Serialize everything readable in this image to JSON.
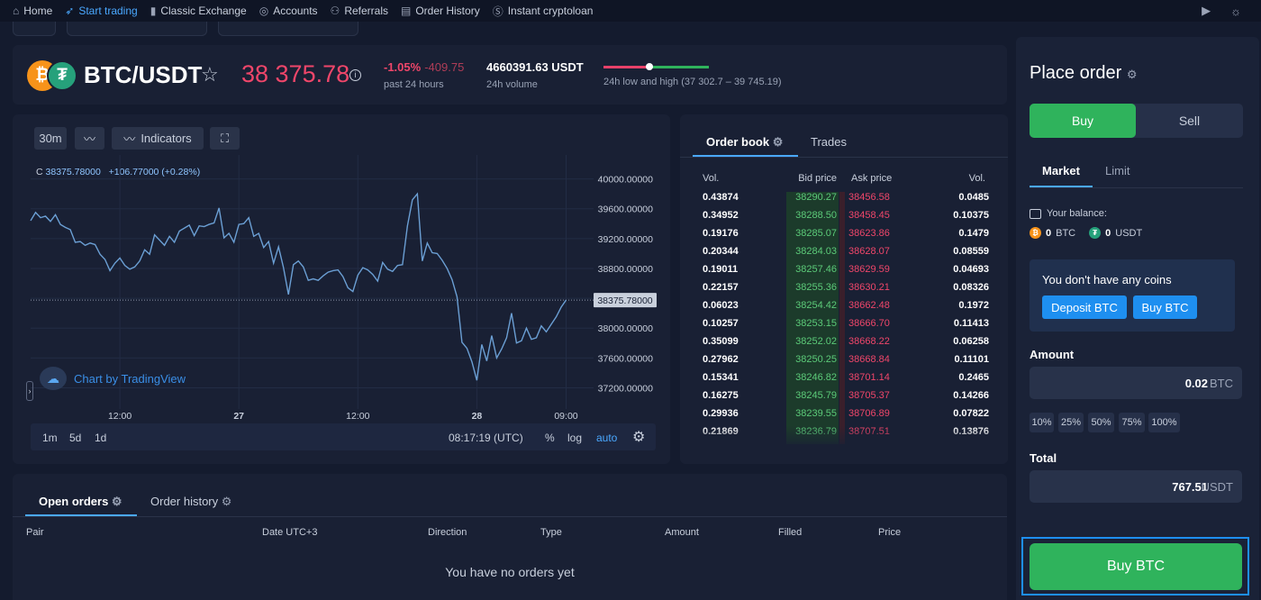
{
  "nav": {
    "items": [
      {
        "label": "Home",
        "icon": "home-icon"
      },
      {
        "label": "Start trading",
        "icon": "rocket-icon",
        "active": true
      },
      {
        "label": "Classic Exchange",
        "icon": "bar-chart-icon"
      },
      {
        "label": "Accounts",
        "icon": "coins-icon"
      },
      {
        "label": "Referrals",
        "icon": "users-icon"
      },
      {
        "label": "Order History",
        "icon": "document-icon"
      },
      {
        "label": "Instant cryptoloan",
        "icon": "money-bag-icon"
      }
    ],
    "right_icons": [
      "apple-icon",
      "google-play-icon",
      "sun-icon"
    ]
  },
  "ticker": {
    "pair": "BTC/USDT",
    "price": "38 375.78",
    "change_pct": "-1.05%",
    "change_abs": "-409.75",
    "change_label": "past 24 hours",
    "volume": "4660391.63 USDT",
    "volume_label": "24h volume",
    "range_label": "24h low and high (37 302.7 – 39 745.19)",
    "range_position": 0.44
  },
  "chart": {
    "interval": "30m",
    "indicators_label": "Indicators",
    "legend_prefix": "C",
    "legend_close": "38375.78000",
    "legend_change": "+106.77000 (+0.28%)",
    "price_tag": "38375.78000",
    "watermark": "Chart by TradingView",
    "ranges": [
      "1m",
      "5d",
      "1d"
    ],
    "time": "08:17:19 (UTC)",
    "pct_label": "%",
    "log_label": "log",
    "auto_label": "auto"
  },
  "chart_data": {
    "type": "line",
    "title": "",
    "xlabel": "",
    "ylabel": "",
    "ylim": [
      37000,
      40200
    ],
    "y_ticks": [
      40000,
      39600,
      39200,
      38800,
      38400,
      38000,
      37600,
      37200
    ],
    "y_tick_labels": [
      "40000.00000",
      "39600.00000",
      "39200.00000",
      "38800.00000",
      "38400.00000",
      "38000.00000",
      "37600.00000",
      "37200.00000"
    ],
    "x_tick_labels": [
      {
        "label": "12:00",
        "t": 18,
        "bold": false
      },
      {
        "label": "27",
        "t": 42,
        "bold": true
      },
      {
        "label": "12:00",
        "t": 66,
        "bold": false
      },
      {
        "label": "28",
        "t": 90,
        "bold": true
      },
      {
        "label": "09:00",
        "t": 108,
        "bold": false
      }
    ],
    "x_max": 109,
    "series": [
      {
        "values": [
          39440,
          39550,
          39480,
          39500,
          39430,
          39520,
          39390,
          39350,
          39320,
          39150,
          39160,
          39110,
          39140,
          39120,
          38990,
          38920,
          38770,
          38870,
          38940,
          38840,
          38790,
          38820,
          38900,
          39050,
          38990,
          39250,
          39180,
          39110,
          39230,
          39150,
          39300,
          39340,
          39380,
          39240,
          39370,
          39360,
          39390,
          39410,
          39610,
          39210,
          39270,
          39150,
          39390,
          39400,
          39480,
          39230,
          39270,
          39080,
          39160,
          38870,
          39090,
          38810,
          38450,
          38850,
          38900,
          38820,
          38640,
          38660,
          38640,
          38700,
          38750,
          38770,
          38780,
          38690,
          38540,
          38490,
          38710,
          38810,
          38780,
          38720,
          38630,
          38880,
          38790,
          38760,
          38840,
          38850,
          39370,
          39720,
          39800,
          38900,
          39140,
          39010,
          39000,
          38910,
          38800,
          38650,
          38420,
          37810,
          37730,
          37550,
          37300,
          37780,
          37560,
          37900,
          37600,
          37720,
          37870,
          38200,
          37800,
          37830,
          38000,
          37850,
          37870,
          38030,
          37950,
          38050,
          38150,
          38280,
          38375.78
        ]
      }
    ],
    "line_color": "#6b9fd4"
  },
  "orderbook": {
    "tab_orderbook": "Order book",
    "tab_trades": "Trades",
    "headers": {
      "vol": "Vol.",
      "bid": "Bid price",
      "ask": "Ask price",
      "vol2": "Vol."
    },
    "rows": [
      [
        "0.43874",
        "38290.27",
        "38456.58",
        "0.0485"
      ],
      [
        "0.34952",
        "38288.50",
        "38458.45",
        "0.10375"
      ],
      [
        "0.19176",
        "38285.07",
        "38623.86",
        "0.1479"
      ],
      [
        "0.20344",
        "38284.03",
        "38628.07",
        "0.08559"
      ],
      [
        "0.19011",
        "38257.46",
        "38629.59",
        "0.04693"
      ],
      [
        "0.22157",
        "38255.36",
        "38630.21",
        "0.08326"
      ],
      [
        "0.06023",
        "38254.42",
        "38662.48",
        "0.1972"
      ],
      [
        "0.10257",
        "38253.15",
        "38666.70",
        "0.11413"
      ],
      [
        "0.35099",
        "38252.02",
        "38668.22",
        "0.06258"
      ],
      [
        "0.27962",
        "38250.25",
        "38668.84",
        "0.11101"
      ],
      [
        "0.15341",
        "38246.82",
        "38701.14",
        "0.2465"
      ],
      [
        "0.16275",
        "38245.79",
        "38705.37",
        "0.14266"
      ],
      [
        "0.29936",
        "38239.55",
        "38706.89",
        "0.07822"
      ],
      [
        "0.21869",
        "38236.79",
        "38707.51",
        "0.13876"
      ]
    ]
  },
  "orders": {
    "tab_open": "Open orders",
    "tab_history": "Order history",
    "columns": [
      "Pair",
      "Date UTC+3",
      "Direction",
      "Type",
      "Amount",
      "Filled",
      "Price"
    ],
    "empty": "You have no orders yet"
  },
  "place_order": {
    "title": "Place order",
    "buy": "Buy",
    "sell": "Sell",
    "tab_market": "Market",
    "tab_limit": "Limit",
    "balance_label": "Your balance:",
    "btc_balance": "0",
    "btc_unit": "BTC",
    "usdt_balance": "0",
    "usdt_unit": "USDT",
    "no_coins": "You don't have any coins",
    "deposit_btn": "Deposit BTC",
    "buy_coin_btn": "Buy BTC",
    "amount_label": "Amount",
    "amount_value": "0.02",
    "amount_unit": "BTC",
    "percent_buttons": [
      "10%",
      "25%",
      "50%",
      "75%",
      "100%"
    ],
    "total_label": "Total",
    "total_value": "767.51",
    "total_unit": "USDT",
    "submit": "Buy BTC"
  },
  "colors": {
    "accent": "#4aa8ff",
    "buy": "#2fb35c",
    "sell": "#f0466a",
    "panel": "#192034",
    "background": "#141b2e"
  }
}
